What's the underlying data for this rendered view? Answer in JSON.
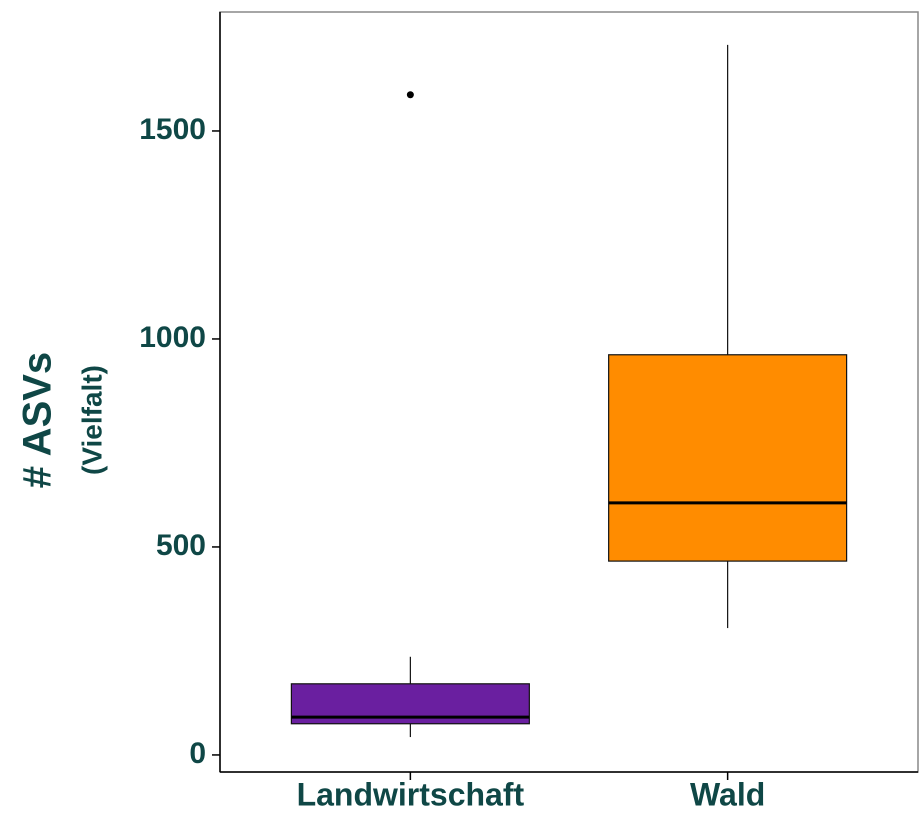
{
  "chart_data": {
    "type": "box",
    "ylabel": "# ASVs",
    "ylabel_sub": "(Vielfalt)",
    "categories": [
      "Landwirtschaft",
      "Wald"
    ],
    "boxes": [
      {
        "min": 43,
        "q1": 75,
        "median": 91,
        "q3": 171,
        "max": 236,
        "outliers": [
          1587
        ]
      },
      {
        "min": 305,
        "q1": 466,
        "median": 606,
        "q3": 962,
        "max": 1707,
        "outliers": []
      }
    ],
    "colors": [
      "#6a1fa0",
      "#ff8c00"
    ],
    "ylim": [
      -41,
      1786
    ],
    "yticks": [
      0,
      500,
      1000,
      1500
    ]
  }
}
